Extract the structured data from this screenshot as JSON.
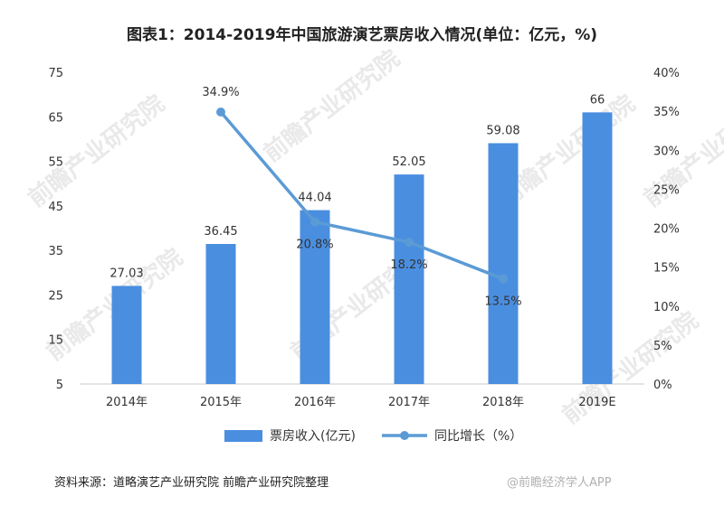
{
  "title": "图表1：2014-2019年中国旅游演艺票房收入情况(单位：亿元，%)",
  "footer": "资料来源：道略演艺产业研究院 前瞻产业研究院整理",
  "watermark": "前瞻产业研究院",
  "watermark_corner": "@前瞻经济学人APP",
  "colors": {
    "bar": "#4a8ee0",
    "line": "#5b9bd5",
    "axis": "#c9c9c9",
    "text": "#333333"
  },
  "chart_data": {
    "type": "bar",
    "categories": [
      "2014年",
      "2015年",
      "2016年",
      "2017年",
      "2018年",
      "2019E"
    ],
    "series": [
      {
        "name": "票房收入(亿元)",
        "type": "bar",
        "axis": "left",
        "values": [
          27.03,
          36.45,
          44.04,
          52.05,
          59.08,
          66
        ],
        "labels": [
          "27.03",
          "36.45",
          "44.04",
          "52.05",
          "59.08",
          "66"
        ]
      },
      {
        "name": "同比增长（%）",
        "type": "line",
        "axis": "right",
        "values": [
          null,
          34.9,
          20.8,
          18.2,
          13.5,
          null
        ],
        "labels": [
          "",
          "34.9%",
          "20.8%",
          "18.2%",
          "13.5%",
          ""
        ]
      }
    ],
    "y_left": {
      "min": 5,
      "max": 75,
      "ticks": [
        "5",
        "15",
        "25",
        "35",
        "45",
        "55",
        "65",
        "75"
      ]
    },
    "y_right": {
      "min": 0,
      "max": 40,
      "ticks": [
        "0%",
        "5%",
        "10%",
        "15%",
        "20%",
        "25%",
        "30%",
        "35%",
        "40%"
      ]
    },
    "legend": [
      "票房收入(亿元)",
      "同比增长（%）"
    ],
    "legend_position": "bottom"
  }
}
